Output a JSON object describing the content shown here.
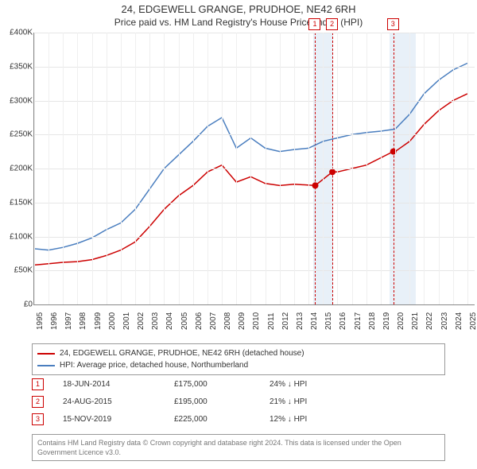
{
  "title_line1": "24, EDGEWELL GRANGE, PRUDHOE, NE42 6RH",
  "title_line2": "Price paid vs. HM Land Registry's House Price Index (HPI)",
  "chart": {
    "type": "line",
    "x_range": [
      1995,
      2025.5
    ],
    "y_range": [
      0,
      400000
    ],
    "y_ticks": [
      0,
      50000,
      100000,
      150000,
      200000,
      250000,
      300000,
      350000,
      400000
    ],
    "y_tick_labels": [
      "£0",
      "£50K",
      "£100K",
      "£150K",
      "£200K",
      "£250K",
      "£300K",
      "£350K",
      "£400K"
    ],
    "x_ticks": [
      1995,
      1996,
      1997,
      1998,
      1999,
      2000,
      2001,
      2002,
      2003,
      2004,
      2005,
      2006,
      2007,
      2008,
      2009,
      2010,
      2011,
      2012,
      2013,
      2014,
      2015,
      2016,
      2017,
      2018,
      2019,
      2020,
      2021,
      2022,
      2023,
      2024,
      2025
    ],
    "grid_color": "#e6e6e6",
    "background_color": "#ffffff",
    "axis_color": "#888888",
    "bands": [
      {
        "from": 2014.3,
        "to": 2015.7,
        "color": "#d6e4f2"
      },
      {
        "from": 2019.6,
        "to": 2021.4,
        "color": "#d6e4f2"
      }
    ],
    "vlines": [
      {
        "x": 2014.46,
        "color": "#cc0000",
        "label": "1"
      },
      {
        "x": 2015.65,
        "color": "#cc0000",
        "label": "2"
      },
      {
        "x": 2019.87,
        "color": "#cc0000",
        "label": "3"
      }
    ],
    "series": [
      {
        "name": "price_paid",
        "color": "#cc0000",
        "width": 1.5,
        "data": [
          [
            1995,
            58000
          ],
          [
            1996,
            60000
          ],
          [
            1997,
            62000
          ],
          [
            1998,
            63000
          ],
          [
            1999,
            66000
          ],
          [
            2000,
            72000
          ],
          [
            2001,
            80000
          ],
          [
            2002,
            92000
          ],
          [
            2003,
            115000
          ],
          [
            2004,
            140000
          ],
          [
            2005,
            160000
          ],
          [
            2006,
            175000
          ],
          [
            2007,
            195000
          ],
          [
            2008,
            205000
          ],
          [
            2009,
            180000
          ],
          [
            2010,
            188000
          ],
          [
            2011,
            178000
          ],
          [
            2012,
            175000
          ],
          [
            2013,
            177000
          ],
          [
            2014.46,
            175000
          ],
          [
            2015.65,
            195000
          ],
          [
            2016,
            195000
          ],
          [
            2017,
            200000
          ],
          [
            2018,
            205000
          ],
          [
            2019.87,
            225000
          ],
          [
            2020,
            225000
          ],
          [
            2021,
            240000
          ],
          [
            2022,
            265000
          ],
          [
            2023,
            285000
          ],
          [
            2024,
            300000
          ],
          [
            2025,
            310000
          ]
        ]
      },
      {
        "name": "hpi",
        "color": "#4a7ebf",
        "width": 1.5,
        "data": [
          [
            1995,
            82000
          ],
          [
            1996,
            80000
          ],
          [
            1997,
            84000
          ],
          [
            1998,
            90000
          ],
          [
            1999,
            98000
          ],
          [
            2000,
            110000
          ],
          [
            2001,
            120000
          ],
          [
            2002,
            140000
          ],
          [
            2003,
            170000
          ],
          [
            2004,
            200000
          ],
          [
            2005,
            220000
          ],
          [
            2006,
            240000
          ],
          [
            2007,
            262000
          ],
          [
            2008,
            275000
          ],
          [
            2009,
            230000
          ],
          [
            2010,
            245000
          ],
          [
            2011,
            230000
          ],
          [
            2012,
            225000
          ],
          [
            2013,
            228000
          ],
          [
            2014,
            230000
          ],
          [
            2015,
            240000
          ],
          [
            2016,
            245000
          ],
          [
            2017,
            250000
          ],
          [
            2018,
            253000
          ],
          [
            2019,
            255000
          ],
          [
            2020,
            258000
          ],
          [
            2021,
            280000
          ],
          [
            2022,
            310000
          ],
          [
            2023,
            330000
          ],
          [
            2024,
            345000
          ],
          [
            2025,
            355000
          ]
        ]
      }
    ],
    "sale_markers": [
      {
        "x": 2014.46,
        "y": 175000
      },
      {
        "x": 2015.65,
        "y": 195000
      },
      {
        "x": 2019.87,
        "y": 225000
      }
    ]
  },
  "legend": {
    "items": [
      {
        "color": "#cc0000",
        "label": "24, EDGEWELL GRANGE, PRUDHOE, NE42 6RH (detached house)"
      },
      {
        "color": "#4a7ebf",
        "label": "HPI: Average price, detached house, Northumberland"
      }
    ]
  },
  "sales": [
    {
      "num": "1",
      "date": "18-JUN-2014",
      "price": "£175,000",
      "delta": "24% ↓ HPI"
    },
    {
      "num": "2",
      "date": "24-AUG-2015",
      "price": "£195,000",
      "delta": "21% ↓ HPI"
    },
    {
      "num": "3",
      "date": "15-NOV-2019",
      "price": "£225,000",
      "delta": "12% ↓ HPI"
    }
  ],
  "attribution": "Contains HM Land Registry data © Crown copyright and database right 2024. This data is licensed under the Open Government Licence v3.0."
}
